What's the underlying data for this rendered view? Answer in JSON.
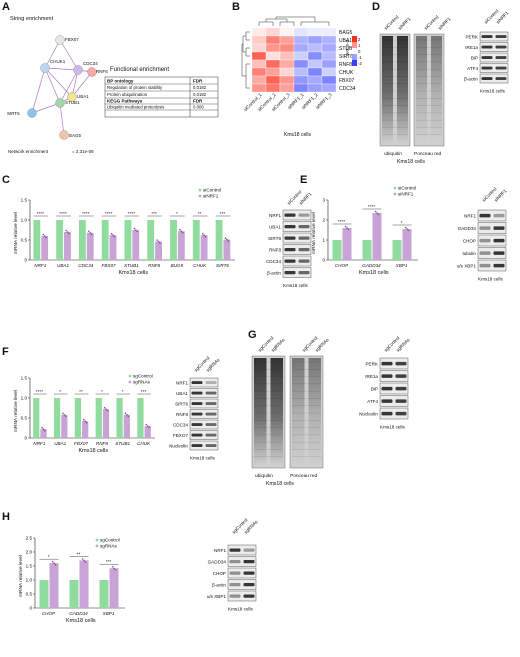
{
  "panels": {
    "A": {
      "letter": "A",
      "title": "String enrichment",
      "network_nodes": [
        "FBX07",
        "CHUK1",
        "CDC34",
        "RNF8",
        "UBA1",
        "STUB1",
        "SIRT6",
        "BAG5"
      ],
      "network_enrichment_label": "Network enrichment",
      "network_enrichment_value": "= 2.31e-08",
      "functional_title": "Functional enrichment",
      "bp_header": "BP ontology",
      "fdr_header": "FDR",
      "bp_rows": [
        {
          "term": "Regulation of protein stability",
          "fdr": "0.0182"
        },
        {
          "term": "Protein ubiquitination",
          "fdr": "0.0182"
        }
      ],
      "kegg_header": "KEGG Pathways",
      "kegg_fdr_header": "FDR",
      "kegg_rows": [
        {
          "term": "Ubiquitin mediated proteolysis",
          "fdr": "0.006"
        }
      ]
    },
    "B": {
      "letter": "B",
      "rows": [
        "BAG5",
        "UBA1",
        "STUB1",
        "SIRT6",
        "RNF8",
        "CHUK",
        "FBX07",
        "CDC34"
      ],
      "cols": [
        "siControl_1",
        "siControl_2",
        "siControl_3",
        "siNRF1_1",
        "siNRF1_2",
        "siNRF1_3"
      ],
      "matrix": [
        [
          0.2,
          0.4,
          0.1,
          -0.3,
          -0.2,
          -0.2
        ],
        [
          0.5,
          1.2,
          0.9,
          -0.8,
          -1.0,
          -0.8
        ],
        [
          0.4,
          1.0,
          1.1,
          -0.9,
          -0.7,
          -0.9
        ],
        [
          1.5,
          0.3,
          0.6,
          -0.5,
          -1.2,
          -0.7
        ],
        [
          0.6,
          1.4,
          0.8,
          -1.2,
          -0.6,
          -1.0
        ],
        [
          1.2,
          0.9,
          0.4,
          -0.7,
          -1.3,
          -0.5
        ],
        [
          0.8,
          1.5,
          1.0,
          -1.1,
          -0.9,
          -1.3
        ],
        [
          1.0,
          1.3,
          0.9,
          -1.3,
          -1.0,
          -0.9
        ]
      ],
      "legend_title": "z-score",
      "legend_ticks": [
        "2",
        "1",
        "0",
        "-1",
        "-2"
      ],
      "xlabel": "Kms18 cells"
    },
    "C": {
      "letter": "C",
      "chart_data": {
        "type": "bar",
        "ylabel": "mRNA relative level",
        "xlabel": "Kms18 cells",
        "ylim": [
          0,
          1.5
        ],
        "yticks": [
          "0",
          "0.5",
          "1.0",
          "1.5"
        ],
        "categories": [
          "NRF1",
          "UBA1",
          "CDC34",
          "FBX07",
          "STUB1",
          "RNF8",
          "BUG5",
          "CHUK",
          "SIRT6"
        ],
        "series": [
          {
            "name": "siControl",
            "values": [
              1,
              1,
              1,
              1,
              1,
              1,
              1,
              1,
              1
            ],
            "color": "#8fdc9e"
          },
          {
            "name": "siNRF1",
            "values": [
              0.6,
              0.7,
              0.68,
              0.62,
              0.75,
              0.46,
              0.72,
              0.62,
              0.51
            ],
            "color": "#c9a2d6"
          }
        ],
        "significance": [
          "****",
          "****",
          "****",
          "****",
          "****",
          "***",
          "*",
          "**",
          "***"
        ]
      },
      "blot_header": [
        "siControl",
        "siNRF1"
      ],
      "blot_labels": [
        "NRF1",
        "UBA1",
        "SIRT6",
        "RNF8",
        "CDC34",
        "β-actin"
      ],
      "blot_caption": "Kms18 cells"
    },
    "D": {
      "letter": "D",
      "header": [
        "siControl",
        "siNRF1",
        "siControl",
        "siNRF1"
      ],
      "caption_left": "ubiquitin",
      "caption_right": "Ponceau red",
      "cells": "Kms18 cells",
      "right_header": [
        "siControl",
        "siNRF1"
      ],
      "right_labels": [
        "PERK",
        "IRE1a",
        "BiP",
        "ATF4",
        "β-actin"
      ],
      "right_caption": "Kms18 cells"
    },
    "E": {
      "letter": "E",
      "chart_data": {
        "type": "bar",
        "ylabel": "mRNA relative level",
        "xlabel": "Kms18 cells",
        "ylim": [
          0,
          3
        ],
        "yticks": [
          "0",
          "1",
          "2",
          "3"
        ],
        "categories": [
          "CHOP",
          "GADD34",
          "XBP1"
        ],
        "series": [
          {
            "name": "siControl",
            "values": [
              1,
              1,
              1
            ],
            "color": "#8fdc9e"
          },
          {
            "name": "siNRF1",
            "values": [
              1.6,
              2.35,
              1.55
            ],
            "color": "#c9a2d6"
          }
        ],
        "significance": [
          "****",
          "****",
          "*"
        ]
      },
      "blot_header": [
        "siControl",
        "siNRF1"
      ],
      "blot_labels": [
        "NRF1",
        "GADD34",
        "CHOP",
        "tubulin",
        "u/s XBP1"
      ],
      "blot_caption": "Kms18 cells"
    },
    "F": {
      "letter": "F",
      "chart_data": {
        "type": "bar",
        "ylabel": "mRNA relative level",
        "xlabel": "Kms18 cells",
        "ylim": [
          0,
          1.5
        ],
        "yticks": [
          "0",
          "0.5",
          "1.0",
          "1.5"
        ],
        "categories": [
          "NRF1",
          "UBA1",
          "FBX07",
          "RNF8",
          "STUB1",
          "CHUK"
        ],
        "series": [
          {
            "name": "sgControl",
            "values": [
              1,
              1,
              1,
              1,
              1,
              1
            ],
            "color": "#8fdc9e"
          },
          {
            "name": "sgRNAs",
            "values": [
              0.22,
              0.58,
              0.42,
              0.72,
              0.58,
              0.3
            ],
            "color": "#c9a2d6"
          }
        ],
        "significance": [
          "****",
          "*",
          "**",
          "*",
          "*",
          "***"
        ]
      },
      "blot_header": [
        "sgControl",
        "sgRNAs"
      ],
      "blot_labels": [
        "NRF1",
        "UBA1",
        "SIRT6",
        "RNF8",
        "CDC34",
        "FBXO7",
        "Nucleolin"
      ],
      "blot_caption": "Kms18 cells"
    },
    "G": {
      "letter": "G",
      "header": [
        "sgControl",
        "sgRNAs",
        "sgControl",
        "sgRNAs"
      ],
      "caption_left": "ubiquitin",
      "caption_right": "Ponceau red",
      "cells": "Kms18 cells",
      "right_header": [
        "sgControl",
        "sgRNAs"
      ],
      "right_labels": [
        "PERK",
        "IRE1a",
        "BiP",
        "ATF4",
        "Nucleolin"
      ],
      "right_caption": "Kms18 cells"
    },
    "H": {
      "letter": "H",
      "chart_data": {
        "type": "bar",
        "ylabel": "mRNA relative level",
        "xlabel": "Kms18 cells",
        "ylim": [
          0,
          2.5
        ],
        "yticks": [
          "0",
          "0.5",
          "1.0",
          "1.5",
          "2.0",
          "2.5"
        ],
        "categories": [
          "CHOP",
          "GADD34",
          "XBP1"
        ],
        "series": [
          {
            "name": "sgControl",
            "values": [
              1,
              1,
              1
            ],
            "color": "#8fdc9e"
          },
          {
            "name": "sgRNAs",
            "values": [
              1.6,
              1.7,
              1.42
            ],
            "color": "#c9a2d6"
          }
        ],
        "significance": [
          "*",
          "**",
          "***"
        ]
      },
      "blot_header": [
        "sgControl",
        "sgRNAs"
      ],
      "blot_labels": [
        "NRF1",
        "GADD34",
        "CHOP",
        "β-actin",
        "u/s XBP1"
      ],
      "blot_caption": "Kms18 cells"
    }
  }
}
